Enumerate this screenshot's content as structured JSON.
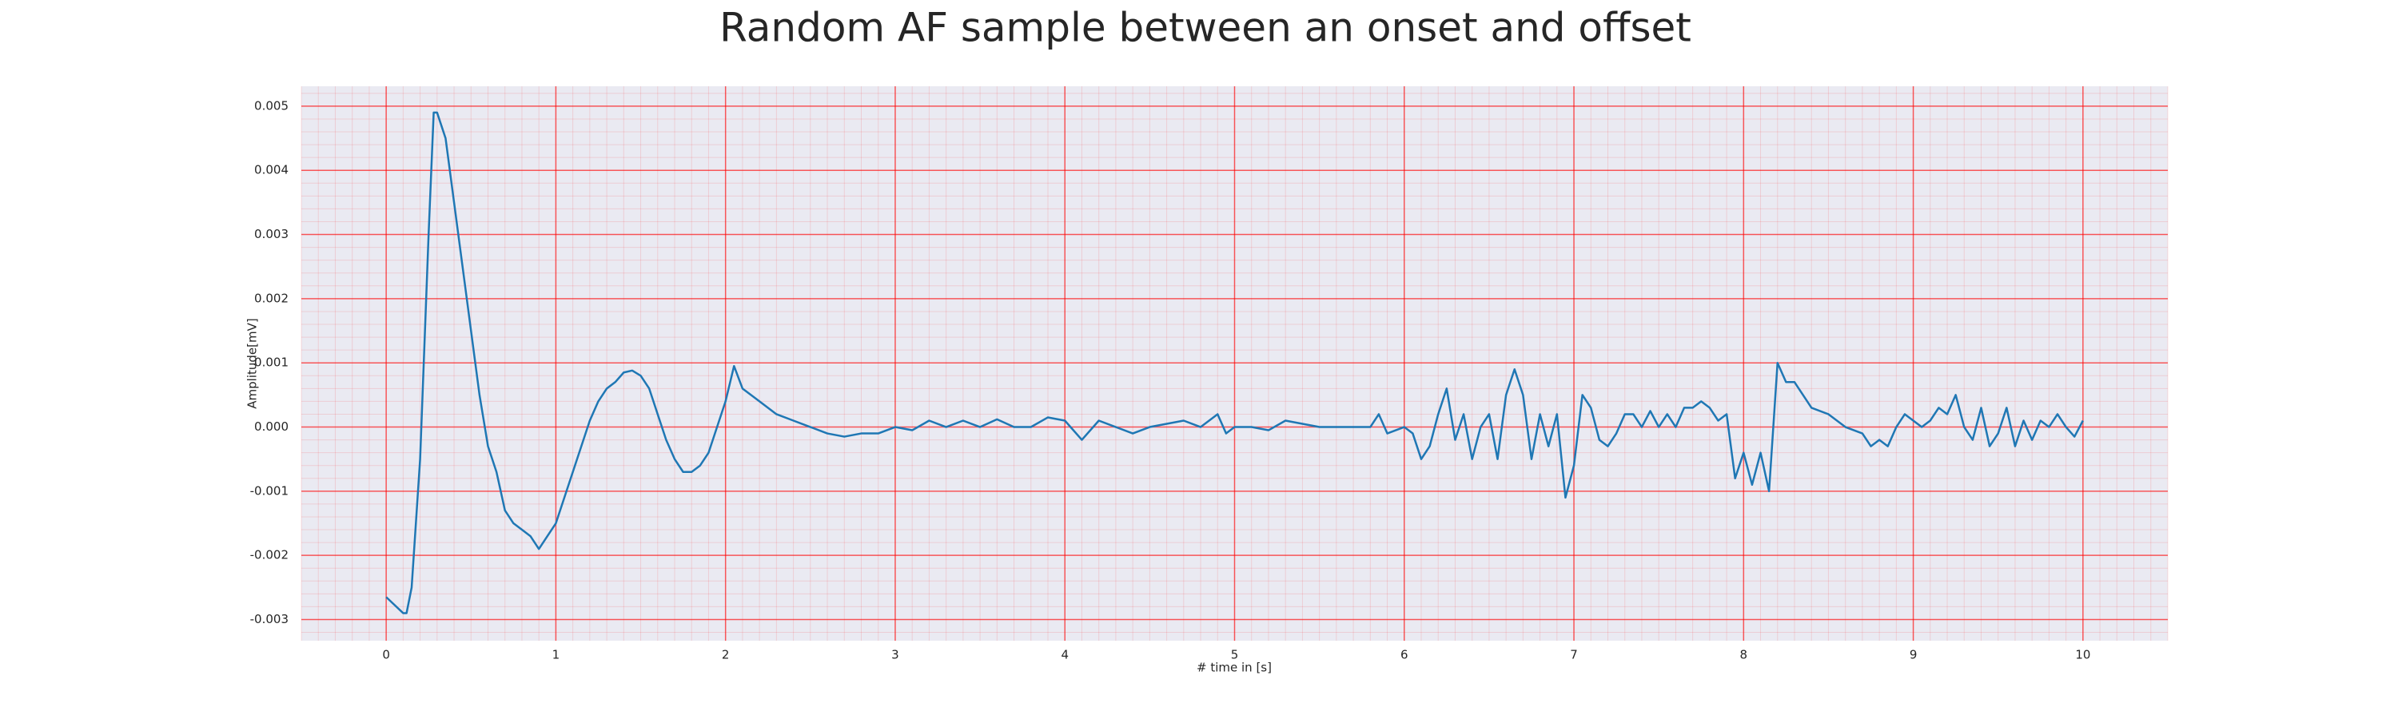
{
  "chart_data": {
    "type": "line",
    "title": "Random AF sample between an onset and offset",
    "xlabel": "# time in [s]",
    "ylabel": "Amplitude[mV]",
    "xlim": [
      -0.5,
      10.5
    ],
    "ylim": [
      -0.00333,
      0.00531
    ],
    "xticks": [
      0,
      1,
      2,
      3,
      4,
      5,
      6,
      7,
      8,
      9,
      10
    ],
    "yticks": [
      -0.003,
      -0.002,
      -0.001,
      {
        "value": 0,
        "label": "0.000"
      },
      0.001,
      0.002,
      0.003,
      0.004,
      0.005
    ],
    "grid": true,
    "minor_grid": true,
    "grid_color": "#ff0000",
    "color": "#1f77b4",
    "x": [
      0,
      0.1,
      0.12,
      0.15,
      0.2,
      0.25,
      0.28,
      0.3,
      0.35,
      0.4,
      0.45,
      0.5,
      0.55,
      0.6,
      0.65,
      0.7,
      0.75,
      0.8,
      0.85,
      0.9,
      0.95,
      1.0,
      1.05,
      1.1,
      1.15,
      1.2,
      1.25,
      1.3,
      1.35,
      1.4,
      1.45,
      1.5,
      1.55,
      1.6,
      1.65,
      1.7,
      1.75,
      1.8,
      1.85,
      1.9,
      1.95,
      2.0,
      2.05,
      2.1,
      2.2,
      2.3,
      2.4,
      2.5,
      2.6,
      2.7,
      2.8,
      2.9,
      3.0,
      3.1,
      3.2,
      3.3,
      3.4,
      3.5,
      3.6,
      3.7,
      3.8,
      3.9,
      4.0,
      4.1,
      4.2,
      4.3,
      4.4,
      4.5,
      4.6,
      4.7,
      4.8,
      4.9,
      4.95,
      5.0,
      5.1,
      5.2,
      5.3,
      5.4,
      5.5,
      5.6,
      5.7,
      5.8,
      5.85,
      5.9,
      6.0,
      6.05,
      6.1,
      6.15,
      6.2,
      6.25,
      6.3,
      6.35,
      6.4,
      6.45,
      6.5,
      6.55,
      6.6,
      6.65,
      6.7,
      6.75,
      6.8,
      6.85,
      6.9,
      6.95,
      7.0,
      7.05,
      7.1,
      7.15,
      7.2,
      7.25,
      7.3,
      7.35,
      7.4,
      7.45,
      7.5,
      7.55,
      7.6,
      7.65,
      7.7,
      7.75,
      7.8,
      7.85,
      7.9,
      7.95,
      8.0,
      8.05,
      8.1,
      8.15,
      8.2,
      8.25,
      8.3,
      8.4,
      8.5,
      8.6,
      8.7,
      8.75,
      8.8,
      8.85,
      8.9,
      8.95,
      9.0,
      9.05,
      9.1,
      9.15,
      9.2,
      9.25,
      9.3,
      9.35,
      9.4,
      9.45,
      9.5,
      9.55,
      9.6,
      9.65,
      9.7,
      9.75,
      9.8,
      9.85,
      9.9,
      9.95,
      10.0
    ],
    "values": [
      -0.00265,
      -0.0029,
      -0.0029,
      -0.0025,
      -0.0005,
      0.003,
      0.0049,
      0.0049,
      0.0045,
      0.0035,
      0.0025,
      0.0015,
      0.0005,
      -0.0003,
      -0.0007,
      -0.0013,
      -0.0015,
      -0.0016,
      -0.0017,
      -0.0019,
      -0.0017,
      -0.0015,
      -0.0011,
      -0.0007,
      -0.0003,
      0.0001,
      0.0004,
      0.0006,
      0.0007,
      0.00085,
      0.00088,
      0.0008,
      0.0006,
      0.0002,
      -0.0002,
      -0.0005,
      -0.0007,
      -0.0007,
      -0.0006,
      -0.0004,
      0.0,
      0.0004,
      0.00095,
      0.0006,
      0.0004,
      0.0002,
      0.0001,
      0.0,
      -0.0001,
      -0.00015,
      -0.0001,
      -0.0001,
      0.0,
      -5e-05,
      0.0001,
      0.0,
      0.0001,
      0.0,
      0.00012,
      0.0,
      0.0,
      0.00015,
      0.0001,
      -0.0002,
      0.0001,
      0.0,
      -0.0001,
      0.0,
      5e-05,
      0.0001,
      0.0,
      0.0002,
      -0.0001,
      0.0,
      0.0,
      -5e-05,
      0.0001,
      5e-05,
      0.0,
      0.0,
      0.0,
      0.0,
      0.0002,
      -0.0001,
      0.0,
      -0.0001,
      -0.0005,
      -0.0003,
      0.0002,
      0.0006,
      -0.0002,
      0.0002,
      -0.0005,
      0.0,
      0.0002,
      -0.0005,
      0.0005,
      0.0009,
      0.0005,
      -0.0005,
      0.0002,
      -0.0003,
      0.0002,
      -0.0011,
      -0.0006,
      0.0005,
      0.0003,
      -0.0002,
      -0.0003,
      -0.0001,
      0.0002,
      0.0002,
      0.0,
      0.00025,
      0.0,
      0.0002,
      0.0,
      0.0003,
      0.0003,
      0.0004,
      0.0003,
      0.0001,
      0.0002,
      -0.0008,
      -0.0004,
      -0.0009,
      -0.0004,
      -0.001,
      0.001,
      0.0007,
      0.0007,
      0.0003,
      0.0002,
      0.0,
      -0.0001,
      -0.0003,
      -0.0002,
      -0.0003,
      0.0,
      0.0002,
      0.0001,
      0.0,
      0.0001,
      0.0003,
      0.0002,
      0.0005,
      0.0,
      -0.0002,
      0.0003,
      -0.0003,
      -0.0001,
      0.0003,
      -0.0003,
      0.0001,
      -0.0002,
      0.0001,
      0.0,
      0.0002,
      0.0,
      -0.00015,
      0.0001
    ]
  }
}
